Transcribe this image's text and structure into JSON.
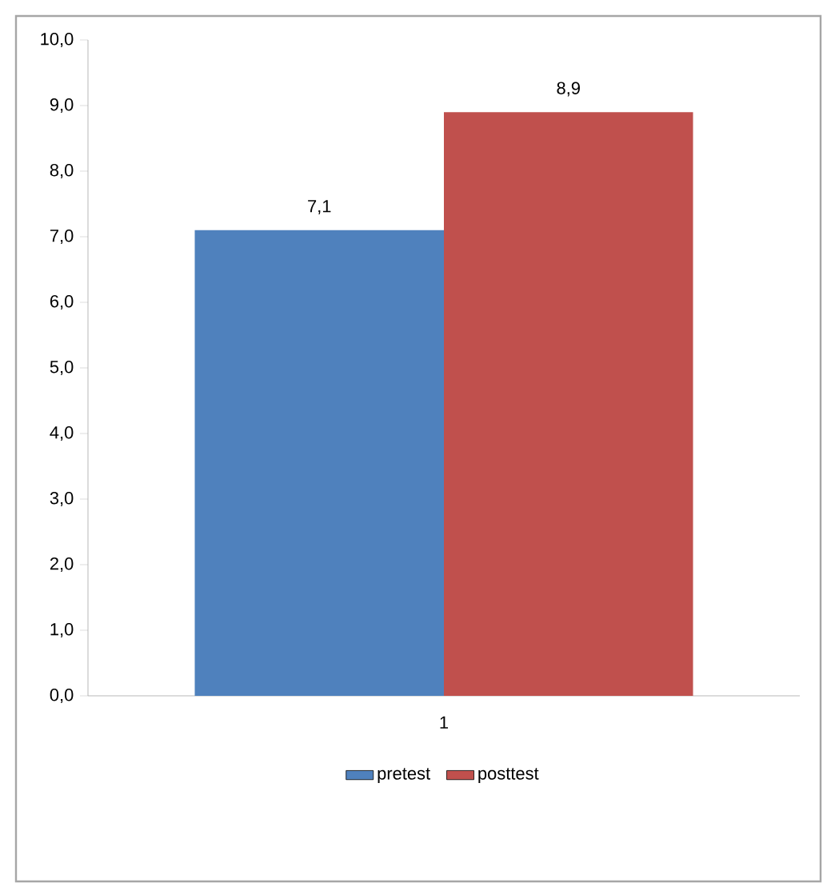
{
  "chart_data": {
    "type": "bar",
    "categories": [
      "1"
    ],
    "series": [
      {
        "name": "pretest",
        "color": "#4f81bd",
        "values": [
          7.1
        ],
        "value_labels": [
          "7,1"
        ]
      },
      {
        "name": "posttest",
        "color": "#c0504d",
        "values": [
          8.9
        ],
        "value_labels": [
          "8,9"
        ]
      }
    ],
    "ylim": [
      0,
      10
    ],
    "yticks": [
      {
        "value": 0,
        "label": "0,0"
      },
      {
        "value": 1,
        "label": "1,0"
      },
      {
        "value": 2,
        "label": "2,0"
      },
      {
        "value": 3,
        "label": "3,0"
      },
      {
        "value": 4,
        "label": "4,0"
      },
      {
        "value": 5,
        "label": "5,0"
      },
      {
        "value": 6,
        "label": "6,0"
      },
      {
        "value": 7,
        "label": "7,0"
      },
      {
        "value": 8,
        "label": "8,0"
      },
      {
        "value": 9,
        "label": "9,0"
      },
      {
        "value": 10,
        "label": "10,0"
      }
    ],
    "grid": false,
    "legend": "bottom"
  }
}
